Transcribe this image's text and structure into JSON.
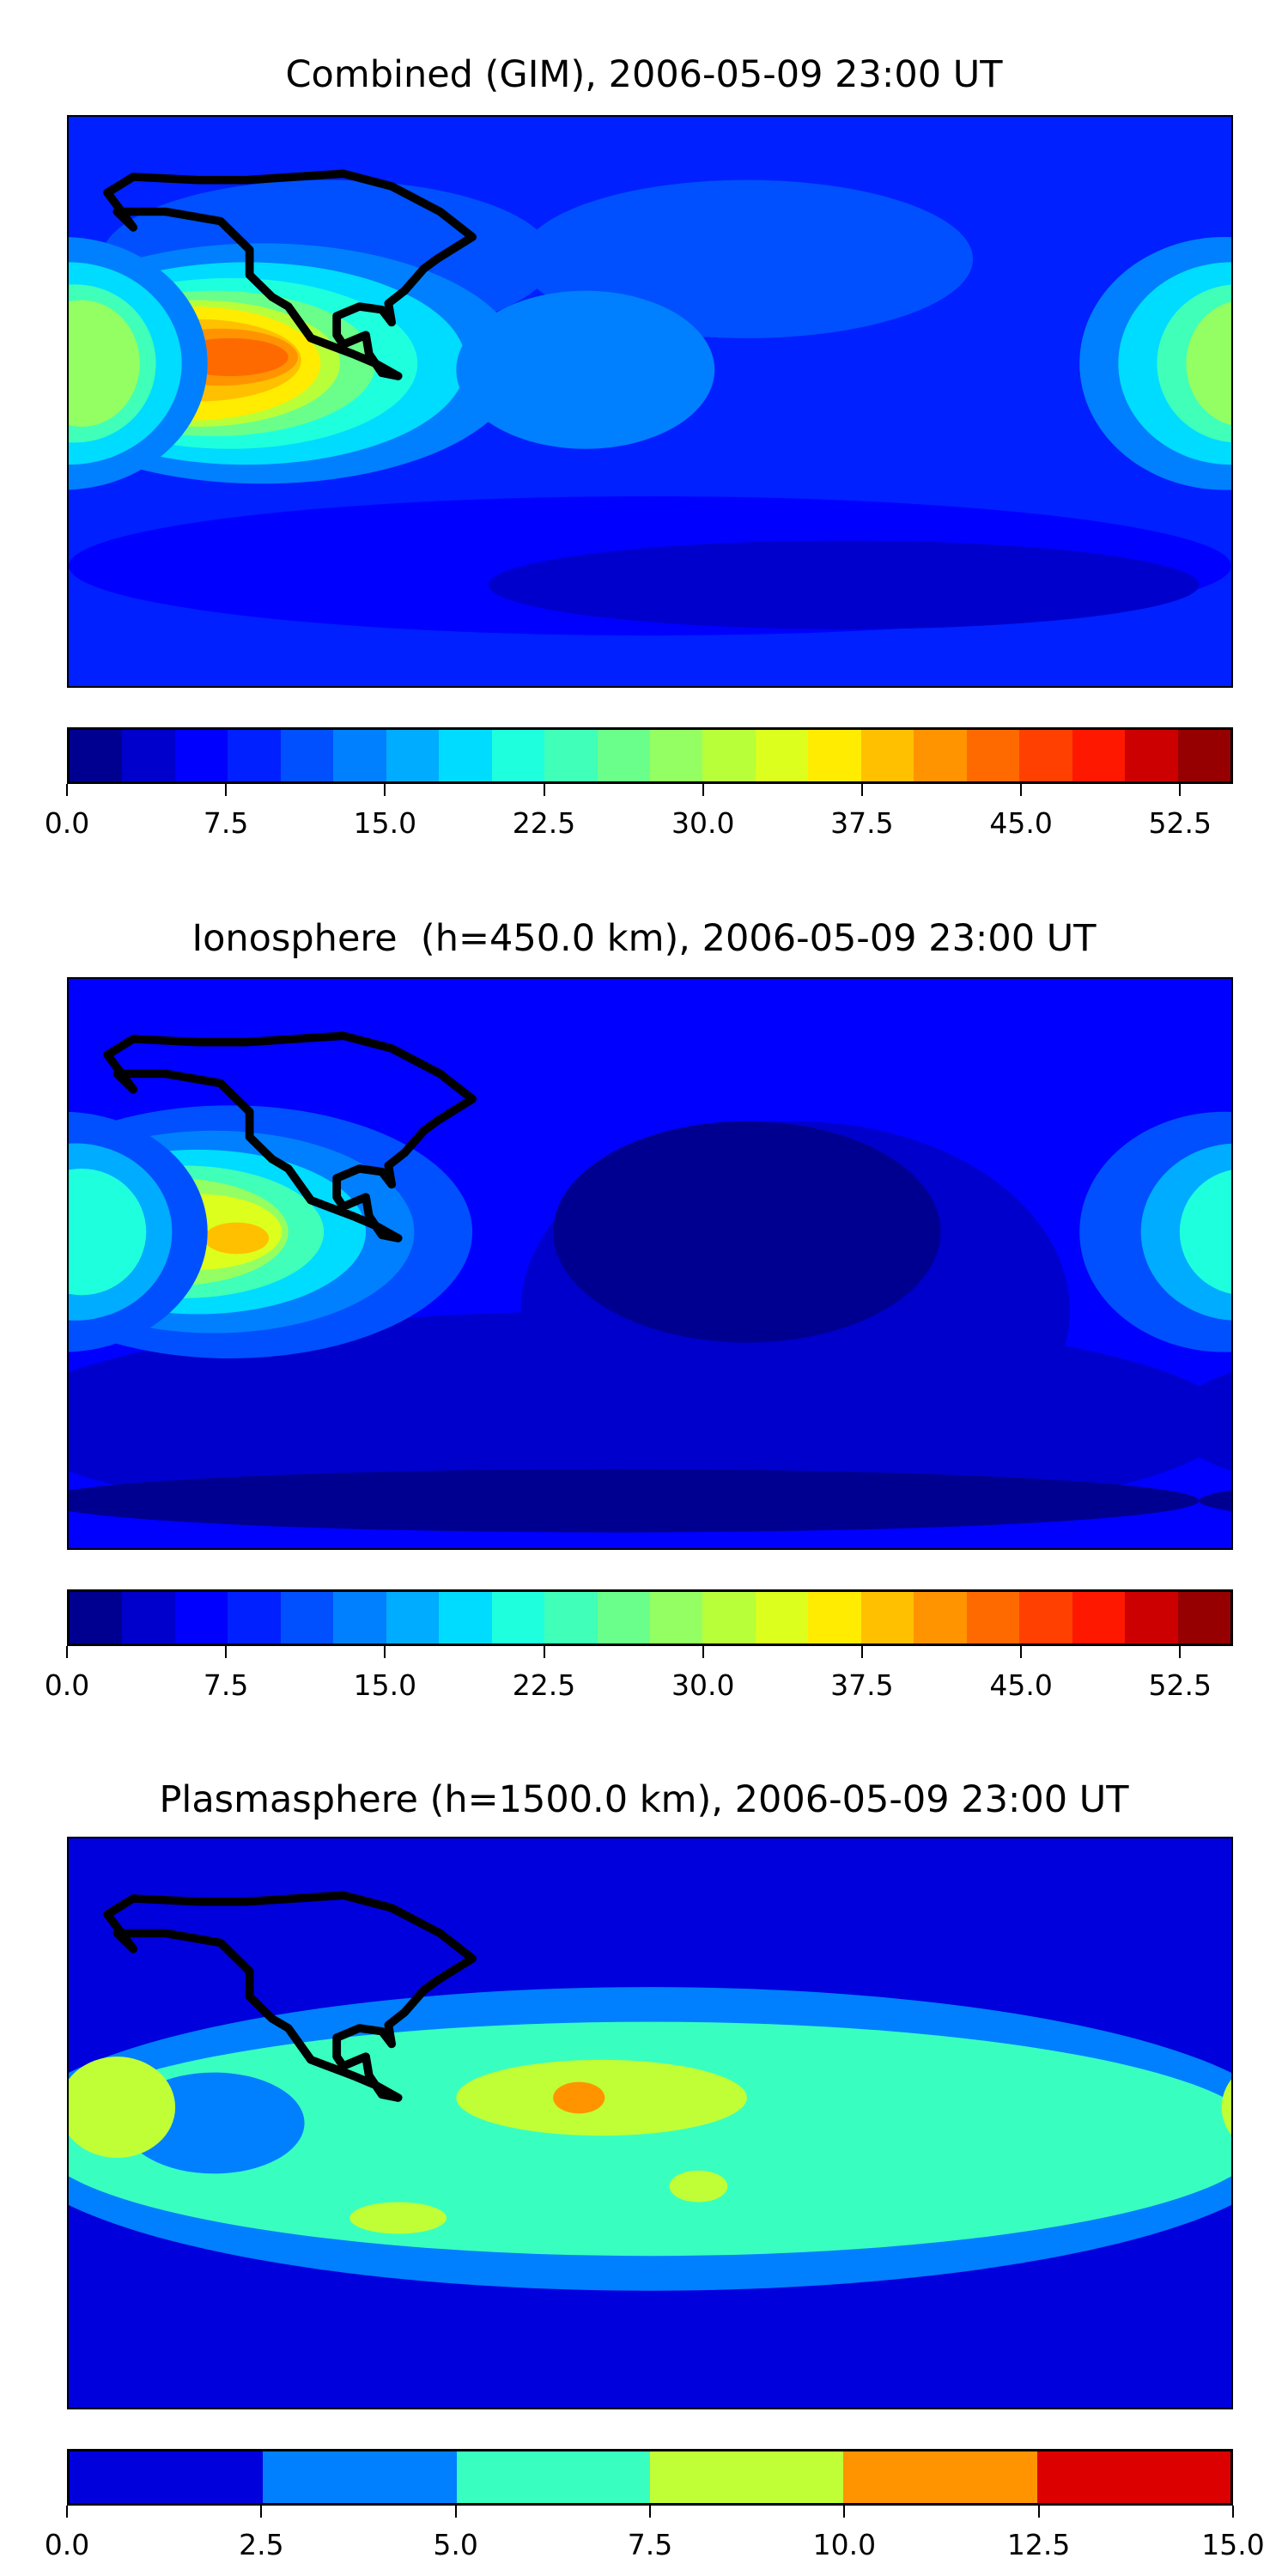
{
  "chart_data": [
    {
      "type": "heatmap",
      "title": "Combined (GIM), 2006-05-09 23:00 UT",
      "projection": "equirectangular, lon -180..180, lat -90..90",
      "colorbar": {
        "vmin": 0,
        "vmax": 55,
        "step": 2.5,
        "ticks": [
          "0.0",
          "7.5",
          "15.0",
          "22.5",
          "30.0",
          "37.5",
          "45.0",
          "52.5"
        ],
        "tick_values": [
          0,
          7.5,
          15,
          22.5,
          30,
          37.5,
          45,
          52.5
        ],
        "colors": [
          "#000090",
          "#0000cc",
          "#0000ff",
          "#0020ff",
          "#0050ff",
          "#0080ff",
          "#00acff",
          "#00dcff",
          "#1effde",
          "#40ffb8",
          "#6aff8a",
          "#94ff62",
          "#b8ff3a",
          "#dcff1e",
          "#ffec00",
          "#ffc000",
          "#ff9400",
          "#ff6a00",
          "#ff4000",
          "#ff1800",
          "#cc0000",
          "#960000"
        ]
      },
      "background_value": 8,
      "regions": [
        {
          "lon": -100,
          "lat": 45,
          "rlon": 70,
          "rlat": 25,
          "value": 11
        },
        {
          "lon": 30,
          "lat": 45,
          "rlon": 70,
          "rlat": 25,
          "value": 11
        },
        {
          "lon": 0,
          "lat": -52,
          "rlon": 180,
          "rlat": 22,
          "value": 6
        },
        {
          "lon": 60,
          "lat": -58,
          "rlon": 110,
          "rlat": 14,
          "value": 3
        },
        {
          "lon": -120,
          "lat": 12,
          "rlon": 80,
          "rlat": 38,
          "value": 13
        },
        {
          "lon": -125,
          "lat": 12,
          "rlon": 68,
          "rlat": 32,
          "value": 18
        },
        {
          "lon": -130,
          "lat": 12,
          "rlon": 58,
          "rlat": 27,
          "value": 21
        },
        {
          "lon": -135,
          "lat": 12,
          "rlon": 50,
          "rlat": 23,
          "value": 26
        },
        {
          "lon": -140,
          "lat": 12,
          "rlon": 44,
          "rlat": 20,
          "value": 31
        },
        {
          "lon": -142,
          "lat": 12,
          "rlon": 40,
          "rlat": 18,
          "value": 36
        },
        {
          "lon": -140,
          "lat": 13,
          "rlon": 32,
          "rlat": 13,
          "value": 39
        },
        {
          "lon": -133,
          "lat": 14,
          "rlon": 24,
          "rlat": 9,
          "value": 42
        },
        {
          "lon": -130,
          "lat": 14,
          "rlon": 18,
          "rlat": 6,
          "value": 44
        },
        {
          "lon": -20,
          "lat": 10,
          "rlon": 40,
          "rlat": 25,
          "value": 13
        },
        {
          "lon": 178,
          "lat": 12,
          "rlon": 45,
          "rlat": 40,
          "value": 13
        },
        {
          "lon": 180,
          "lat": 12,
          "rlon": 35,
          "rlat": 32,
          "value": 19
        },
        {
          "lon": 182,
          "lat": 12,
          "rlon": 25,
          "rlat": 25,
          "value": 24
        },
        {
          "lon": 184,
          "lat": 12,
          "rlon": 18,
          "rlat": 20,
          "value": 29
        }
      ]
    },
    {
      "type": "heatmap",
      "title": "Ionosphere  (h=450.0 km), 2006-05-09 23:00 UT",
      "projection": "equirectangular, lon -180..180, lat -90..90",
      "colorbar": {
        "vmin": 0,
        "vmax": 55,
        "step": 2.5,
        "ticks": [
          "0.0",
          "7.5",
          "15.0",
          "22.5",
          "30.0",
          "37.5",
          "45.0",
          "52.5"
        ],
        "tick_values": [
          0,
          7.5,
          15,
          22.5,
          30,
          37.5,
          45,
          52.5
        ],
        "colors": [
          "#000090",
          "#0000cc",
          "#0000ff",
          "#0020ff",
          "#0050ff",
          "#0080ff",
          "#00acff",
          "#00dcff",
          "#1effde",
          "#40ffb8",
          "#6aff8a",
          "#94ff62",
          "#b8ff3a",
          "#dcff1e",
          "#ffec00",
          "#ffc000",
          "#ff9400",
          "#ff6a00",
          "#ff4000",
          "#ff1800",
          "#cc0000",
          "#960000"
        ]
      },
      "background_value": 7,
      "regions": [
        {
          "lon": -10,
          "lat": -50,
          "rlon": 190,
          "rlat": 35,
          "value": 4
        },
        {
          "lon": 45,
          "lat": -15,
          "rlon": 85,
          "rlat": 60,
          "value": 4
        },
        {
          "lon": 30,
          "lat": 10,
          "rlon": 60,
          "rlat": 35,
          "value": 2
        },
        {
          "lon": -10,
          "lat": -75,
          "rlon": 180,
          "rlat": 10,
          "value": 1
        },
        {
          "lon": -130,
          "lat": 10,
          "rlon": 75,
          "rlat": 40,
          "value": 11
        },
        {
          "lon": -135,
          "lat": 10,
          "rlon": 62,
          "rlat": 32,
          "value": 14
        },
        {
          "lon": -140,
          "lat": 10,
          "rlon": 52,
          "rlat": 26,
          "value": 19
        },
        {
          "lon": -145,
          "lat": 10,
          "rlon": 44,
          "rlat": 21,
          "value": 24
        },
        {
          "lon": -148,
          "lat": 10,
          "rlon": 36,
          "rlat": 17,
          "value": 29
        },
        {
          "lon": -140,
          "lat": 10,
          "rlon": 26,
          "rlat": 12,
          "value": 34
        },
        {
          "lon": -128,
          "lat": 8,
          "rlon": 10,
          "rlat": 5,
          "value": 38
        },
        {
          "lon": 178,
          "lat": 10,
          "rlon": 45,
          "rlat": 38,
          "value": 12
        },
        {
          "lon": 182,
          "lat": 10,
          "rlon": 30,
          "rlat": 28,
          "value": 17
        },
        {
          "lon": 184,
          "lat": 10,
          "rlon": 20,
          "rlat": 20,
          "value": 21
        }
      ]
    },
    {
      "type": "heatmap",
      "title": "Plasmasphere (h=1500.0 km), 2006-05-09 23:00 UT",
      "projection": "equirectangular, lon -180..180, lat -90..90",
      "colorbar": {
        "vmin": 0,
        "vmax": 15,
        "step": 2.5,
        "ticks": [
          "0.0",
          "2.5",
          "5.0",
          "7.5",
          "10.0",
          "12.5",
          "15.0"
        ],
        "tick_values": [
          0,
          2.5,
          5,
          7.5,
          10,
          12.5,
          15
        ],
        "colors": [
          "#0000dd",
          "#0080ff",
          "#38ffc0",
          "#c0ff36",
          "#ff9400",
          "#dd0000"
        ]
      },
      "background_value": 1,
      "regions": [
        {
          "lon": 0,
          "lat": -5,
          "rlon": 200,
          "rlat": 48,
          "value": 3
        },
        {
          "lon": 0,
          "lat": -5,
          "rlon": 190,
          "rlat": 37,
          "value": 6
        },
        {
          "lon": -135,
          "lat": 0,
          "rlon": 28,
          "rlat": 16,
          "value": 3
        },
        {
          "lon": -165,
          "lat": 5,
          "rlon": 18,
          "rlat": 16,
          "value": 8
        },
        {
          "lon": -15,
          "lat": 8,
          "rlon": 45,
          "rlat": 12,
          "value": 8
        },
        {
          "lon": -22,
          "lat": 8,
          "rlon": 8,
          "rlat": 5,
          "value": 11
        },
        {
          "lon": -78,
          "lat": -30,
          "rlon": 15,
          "rlat": 5,
          "value": 8
        },
        {
          "lon": 15,
          "lat": -20,
          "rlon": 9,
          "rlat": 5,
          "value": 8
        }
      ]
    }
  ]
}
